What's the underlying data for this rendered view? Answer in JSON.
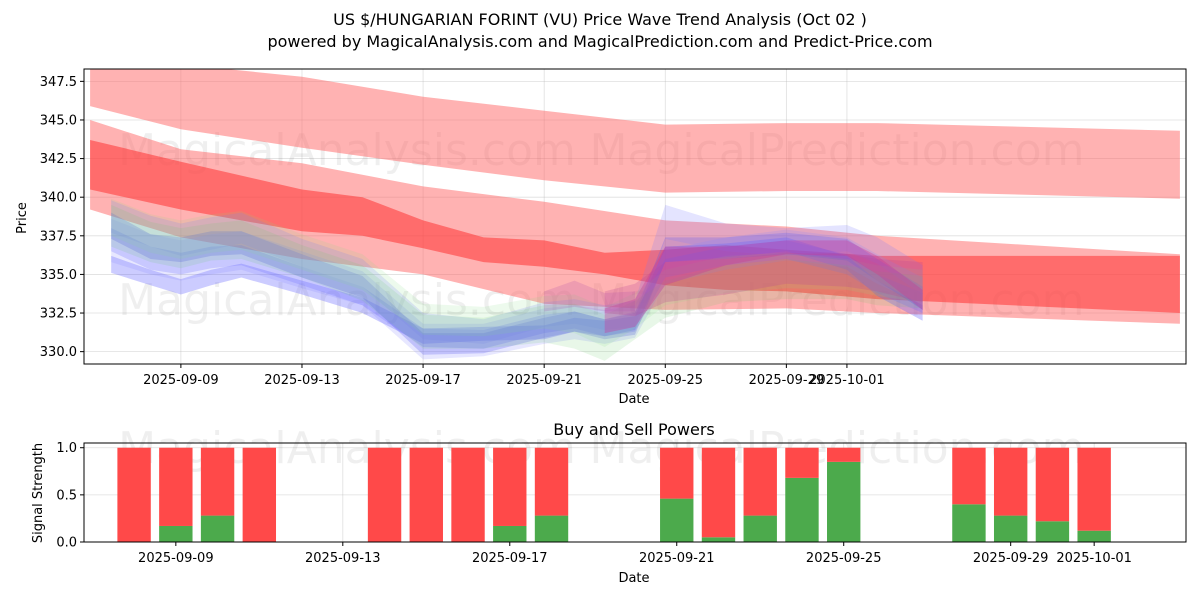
{
  "chart_data": [
    {
      "type": "area",
      "title": "US $/HUNGARIAN FORINT (VU) Price Wave Trend Analysis (Oct 02 )",
      "subtitle": "powered by MagicalAnalysis.com and MagicalPrediction.com and Predict-Price.com",
      "xlabel": "Date",
      "ylabel": "Price",
      "xlim_days": [
        -2.2,
        34.2
      ],
      "ylim": [
        329.2,
        348.3
      ],
      "x_ticks": [
        {
          "day": 1,
          "label": "2025-09-09"
        },
        {
          "day": 5,
          "label": "2025-09-13"
        },
        {
          "day": 9,
          "label": "2025-09-17"
        },
        {
          "day": 13,
          "label": "2025-09-21"
        },
        {
          "day": 17,
          "label": "2025-09-25"
        },
        {
          "day": 21,
          "label": "2025-09-29"
        },
        {
          "day": 23,
          "label": "2025-10-01"
        }
      ],
      "y_ticks": [
        {
          "value": 330.0,
          "label": "330.0"
        },
        {
          "value": 332.5,
          "label": "332.5"
        },
        {
          "value": 335.0,
          "label": "335.0"
        },
        {
          "value": 337.5,
          "label": "337.5"
        },
        {
          "value": 340.0,
          "label": "340.0"
        },
        {
          "value": 342.5,
          "label": "342.5"
        },
        {
          "value": 345.0,
          "label": "345.0"
        },
        {
          "value": 347.5,
          "label": "347.5"
        }
      ],
      "red_bands": [
        {
          "name": "upper-wave",
          "color": "#ff6666",
          "opacity": 0.5,
          "x": [
            -2,
            1,
            5,
            9,
            13,
            17,
            21,
            24,
            34
          ],
          "lower": [
            345.9,
            344.4,
            343.2,
            342.1,
            341.1,
            340.3,
            340.4,
            340.4,
            339.9
          ],
          "upper": [
            349.9,
            348.6,
            347.8,
            346.5,
            345.6,
            344.7,
            344.8,
            344.8,
            344.3
          ]
        },
        {
          "name": "middle-wave",
          "color": "#ff6666",
          "opacity": 0.5,
          "x": [
            -2,
            1,
            5,
            9,
            13,
            17,
            21,
            24,
            34
          ],
          "lower": [
            339.2,
            337.4,
            336.0,
            335.0,
            333.1,
            332.7,
            332.8,
            332.5,
            331.8
          ],
          "upper": [
            345.0,
            343.1,
            342.2,
            340.7,
            339.7,
            338.5,
            338.1,
            337.5,
            336.3
          ]
        },
        {
          "name": "core-wave",
          "color": "#ff3333",
          "opacity": 0.55,
          "x": [
            -2,
            1,
            3,
            5,
            7,
            9,
            11,
            13,
            15,
            17,
            19,
            21,
            24,
            34
          ],
          "lower": [
            340.5,
            339.2,
            338.5,
            337.8,
            337.5,
            336.7,
            335.8,
            335.5,
            335.0,
            334.3,
            334.0,
            333.9,
            333.4,
            332.5
          ],
          "upper": [
            343.7,
            342.3,
            341.4,
            340.5,
            340.0,
            338.5,
            337.4,
            337.2,
            336.4,
            336.6,
            336.9,
            336.6,
            336.2,
            336.2
          ]
        }
      ],
      "wave_bands": [
        {
          "name": "blue-1",
          "color": "#5555ff",
          "opacity": 0.3,
          "x": [
            -1.3,
            0,
            1,
            2,
            3,
            5,
            7,
            9,
            11,
            13,
            14,
            15,
            16,
            17,
            19,
            21,
            23,
            24,
            25.5
          ],
          "lower": [
            335.1,
            334.3,
            333.7,
            334.3,
            334.8,
            333.7,
            332.5,
            330.5,
            330.7,
            330.8,
            331.3,
            331.0,
            331.4,
            335.8,
            336.1,
            336.5,
            335.3,
            333.6,
            332.0
          ],
          "upper": [
            336.2,
            335.3,
            334.7,
            335.3,
            335.7,
            334.6,
            333.5,
            331.5,
            331.6,
            331.7,
            332.2,
            332.0,
            332.3,
            336.8,
            337.0,
            337.4,
            336.2,
            334.6,
            333.0
          ]
        },
        {
          "name": "blue-2",
          "color": "#6666ff",
          "opacity": 0.25,
          "x": [
            -1.3,
            0,
            1,
            2,
            3,
            5,
            7,
            9,
            11,
            13,
            14,
            15,
            16,
            17,
            19,
            21,
            23,
            24,
            25.5
          ],
          "lower": [
            336.5,
            335.3,
            335.0,
            335.4,
            335.6,
            334.3,
            333.0,
            330.3,
            330.2,
            331.2,
            331.5,
            331.0,
            331.3,
            334.8,
            335.6,
            336.0,
            335.0,
            333.8,
            332.5
          ],
          "upper": [
            338.0,
            336.8,
            336.4,
            336.8,
            336.9,
            335.5,
            334.2,
            331.5,
            331.4,
            332.4,
            332.6,
            332.1,
            332.6,
            336.0,
            336.8,
            337.2,
            336.3,
            335.0,
            333.8
          ]
        },
        {
          "name": "blue-3",
          "color": "#4444ee",
          "opacity": 0.25,
          "x": [
            -1.3,
            0,
            1,
            2,
            3,
            5,
            7,
            9,
            11,
            13,
            14,
            15,
            16,
            17,
            19,
            21,
            23,
            24,
            25.5
          ],
          "lower": [
            337.3,
            336.0,
            335.8,
            336.2,
            336.3,
            334.8,
            333.5,
            329.8,
            329.9,
            330.9,
            331.3,
            330.8,
            331.1,
            335.8,
            336.0,
            336.3,
            335.9,
            334.6,
            332.7
          ],
          "upper": [
            339.0,
            337.6,
            337.4,
            337.8,
            337.8,
            336.3,
            334.9,
            331.2,
            331.2,
            332.2,
            332.6,
            332.1,
            332.5,
            337.4,
            337.4,
            337.7,
            337.3,
            336.0,
            334.2
          ]
        },
        {
          "name": "blue-4",
          "color": "#7777ff",
          "opacity": 0.2,
          "x": [
            -1.3,
            0,
            1,
            2,
            3,
            5,
            7,
            9,
            11,
            13,
            14,
            15,
            16,
            17,
            19,
            21,
            23,
            24,
            25.5
          ],
          "lower": [
            337.7,
            336.8,
            336.2,
            336.6,
            337.0,
            335.5,
            334.2,
            330.8,
            330.5,
            331.6,
            331.8,
            331.4,
            331.6,
            337.3,
            336.5,
            336.2,
            336.5,
            335.7,
            333.7
          ],
          "upper": [
            339.8,
            338.8,
            338.3,
            338.7,
            339.0,
            337.3,
            336.0,
            332.5,
            332.1,
            333.2,
            333.4,
            333.0,
            333.3,
            339.5,
            338.3,
            338.0,
            338.2,
            337.4,
            335.6
          ]
        },
        {
          "name": "blue-5",
          "color": "#8888ff",
          "opacity": 0.2,
          "x": [
            -1.3,
            0,
            1,
            2,
            3,
            5,
            7,
            9,
            11,
            13,
            14,
            15,
            16,
            17,
            19,
            21,
            23,
            24,
            25.5
          ],
          "lower": [
            335.8,
            335.0,
            334.6,
            335.0,
            335.3,
            334.1,
            333.0,
            329.5,
            329.7,
            330.5,
            330.8,
            330.5,
            330.9,
            334.4,
            335.3,
            335.9,
            335.5,
            334.4,
            333.0
          ],
          "upper": [
            338.6,
            337.6,
            337.2,
            337.6,
            337.8,
            336.5,
            335.2,
            331.8,
            331.8,
            332.8,
            333.0,
            332.7,
            333.0,
            336.6,
            337.4,
            337.9,
            337.4,
            336.3,
            334.8
          ]
        },
        {
          "name": "green-1",
          "color": "#66cc66",
          "opacity": 0.15,
          "x": [
            -1.3,
            0,
            1,
            2,
            3,
            5,
            7,
            9,
            11,
            13,
            14,
            15,
            16,
            17,
            19,
            21,
            23,
            24,
            25.5
          ],
          "lower": [
            336.8,
            335.8,
            335.4,
            335.9,
            336.0,
            334.8,
            333.3,
            330.2,
            330.2,
            330.6,
            330.2,
            329.4,
            330.8,
            332.2,
            333.2,
            333.4,
            333.4,
            333.0,
            332.8
          ],
          "upper": [
            339.5,
            338.4,
            338.0,
            338.3,
            338.5,
            336.9,
            335.6,
            332.4,
            332.2,
            333.0,
            333.1,
            332.4,
            333.3,
            334.6,
            335.6,
            336.0,
            335.6,
            335.2,
            334.9
          ]
        },
        {
          "name": "green-2",
          "color": "#88dd88",
          "opacity": 0.15,
          "x": [
            -1.3,
            0,
            1,
            2,
            3,
            5,
            7,
            9,
            11,
            13,
            14,
            15,
            16,
            17,
            19,
            21,
            23,
            24,
            25.5
          ],
          "lower": [
            337.5,
            336.4,
            336.0,
            336.4,
            336.6,
            335.3,
            334.0,
            331.1,
            331.0,
            331.5,
            331.2,
            330.3,
            331.5,
            333.0,
            333.8,
            334.1,
            334.0,
            333.6,
            333.2
          ],
          "upper": [
            339.9,
            338.9,
            338.5,
            338.9,
            339.1,
            337.6,
            336.3,
            333.1,
            332.9,
            333.6,
            333.7,
            332.9,
            333.8,
            335.3,
            336.2,
            336.4,
            336.0,
            335.6,
            335.3
          ]
        },
        {
          "name": "purple-1",
          "color": "#cc3399",
          "opacity": 0.35,
          "x": [
            15,
            16,
            17,
            19,
            21,
            23,
            24,
            25.5
          ],
          "lower": [
            331.2,
            331.6,
            334.3,
            335.6,
            336.3,
            336.2,
            335.0,
            332.7
          ],
          "upper": [
            332.8,
            333.4,
            336.8,
            336.8,
            337.2,
            337.2,
            336.2,
            334.0
          ]
        },
        {
          "name": "purple-2",
          "color": "#bb4499",
          "opacity": 0.25,
          "x": [
            15,
            16,
            17,
            19,
            21,
            23,
            24,
            25.5
          ],
          "lower": [
            332.5,
            332.3,
            333.2,
            333.7,
            334.4,
            334.2,
            333.9,
            333.2
          ],
          "upper": [
            333.9,
            334.4,
            335.8,
            336.0,
            336.4,
            336.3,
            336.0,
            335.8
          ]
        },
        {
          "name": "purple-3",
          "color": "#aa44aa",
          "opacity": 0.2,
          "x": [
            13,
            14,
            15,
            16
          ],
          "lower": [
            332.6,
            332.9,
            332.6,
            332.6
          ],
          "upper": [
            333.9,
            334.6,
            333.8,
            333.9
          ]
        }
      ],
      "watermarks": [
        "MagicalAnalysis.com",
        "MagicalPrediction.com",
        "MagicalAnalysis.com",
        "MagicalPrediction.com"
      ]
    },
    {
      "type": "bar",
      "title": "Buy and Sell Powers",
      "xlabel": "Date",
      "ylabel": "Signal Strength",
      "xlim_days": [
        -2.2,
        24.2
      ],
      "ylim": [
        0,
        1.05
      ],
      "x_ticks": [
        {
          "day": 0,
          "label": "2025-09-09"
        },
        {
          "day": 4,
          "label": "2025-09-13"
        },
        {
          "day": 8,
          "label": "2025-09-17"
        },
        {
          "day": 12,
          "label": "2025-09-21"
        },
        {
          "day": 16,
          "label": "2025-09-25"
        },
        {
          "day": 20,
          "label": "2025-09-29"
        },
        {
          "day": 22,
          "label": "2025-10-01"
        }
      ],
      "y_ticks": [
        {
          "value": 0.0,
          "label": "0.0"
        },
        {
          "value": 0.5,
          "label": "0.5"
        },
        {
          "value": 1.0,
          "label": "1.0"
        }
      ],
      "categories_days": [
        -1,
        0,
        1,
        2,
        5,
        6,
        7,
        8,
        9,
        12,
        13,
        14,
        15,
        16,
        19,
        20,
        21,
        22
      ],
      "series": [
        {
          "name": "Buy",
          "color": "#4caa4c",
          "values": [
            0.0,
            0.17,
            0.28,
            0.0,
            0.0,
            0.0,
            0.0,
            0.17,
            0.28,
            0.46,
            0.05,
            0.28,
            0.68,
            0.85,
            0.4,
            0.28,
            0.22,
            0.12
          ]
        },
        {
          "name": "Sell",
          "color": "#ff4949",
          "values": [
            1.0,
            0.83,
            0.72,
            1.0,
            1.0,
            1.0,
            1.0,
            0.83,
            0.72,
            0.54,
            0.95,
            0.72,
            0.32,
            0.15,
            0.6,
            0.72,
            0.78,
            0.88
          ]
        }
      ],
      "watermarks": [
        "MagicalAnalysis.com",
        "MagicalPrediction.com"
      ]
    }
  ]
}
